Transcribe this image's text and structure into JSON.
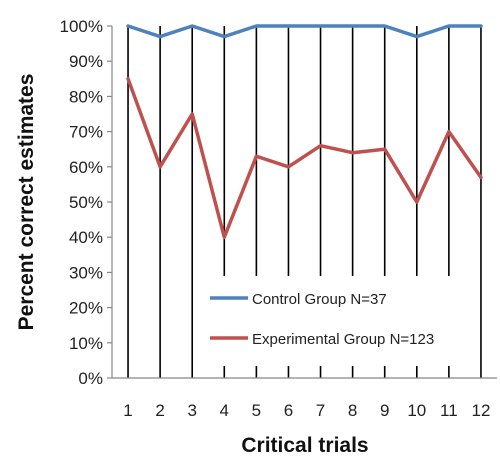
{
  "chart_data": {
    "type": "line",
    "title": "",
    "xlabel": "Critical trials",
    "ylabel": "Percent correct estimates",
    "categories": [
      "1",
      "2",
      "3",
      "4",
      "5",
      "6",
      "7",
      "8",
      "9",
      "10",
      "11",
      "12"
    ],
    "ylim": [
      0,
      100
    ],
    "yticks": [
      "0%",
      "10%",
      "20%",
      "30%",
      "40%",
      "50%",
      "60%",
      "70%",
      "80%",
      "90%",
      "100%"
    ],
    "grid": {
      "vertical": true,
      "horizontal": false
    },
    "legend_position": "bottom-right",
    "series": [
      {
        "name": "Control Group N=37",
        "color": "#4f81bd",
        "values": [
          100,
          97,
          100,
          97,
          100,
          100,
          100,
          100,
          100,
          97,
          100,
          100
        ]
      },
      {
        "name": "Experimental Group N=123",
        "color": "#c0504d",
        "values": [
          85,
          60,
          75,
          40,
          63,
          60,
          66,
          64,
          65,
          50,
          70,
          57
        ]
      }
    ]
  }
}
